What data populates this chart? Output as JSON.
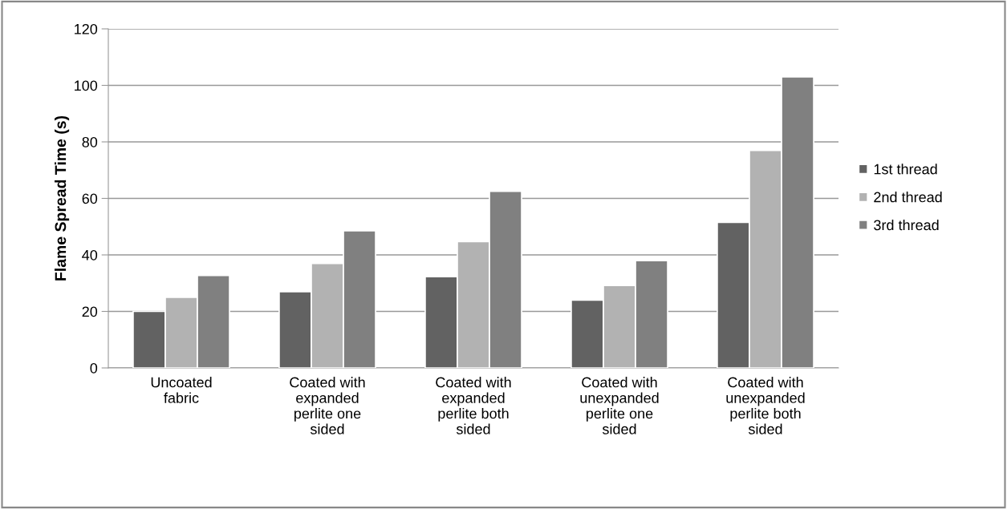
{
  "chart_data": {
    "type": "bar",
    "ylabel": "Flame Spread Time (s)",
    "categories": [
      "Uncoated\nfabric",
      "Coated with\nexpanded\nperlite one\nsided",
      "Coated with\nexpanded\nperlite both\nsided",
      "Coated with\nunexpanded\nperlite one\nsided",
      "Coated with\nunexpanded\nperlite both\nsided"
    ],
    "series": [
      {
        "name": "1st thread",
        "color": "#626262",
        "values": [
          20,
          27,
          32.3,
          24,
          51.5
        ]
      },
      {
        "name": "2nd thread",
        "color": "#b2b2b2",
        "values": [
          25,
          37,
          44.7,
          29.2,
          77
        ]
      },
      {
        "name": "3rd thread",
        "color": "#808080",
        "values": [
          32.7,
          48.5,
          62.5,
          38,
          103
        ]
      }
    ],
    "ylim": [
      0,
      120
    ],
    "yticks": [
      0,
      20,
      40,
      60,
      80,
      100,
      120
    ],
    "grid": "y",
    "legend": "right"
  }
}
